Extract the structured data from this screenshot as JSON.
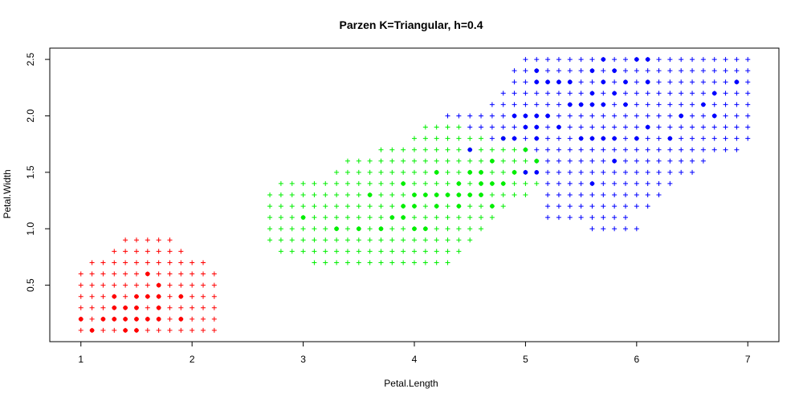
{
  "chart_data": {
    "type": "scatter",
    "title": "Parzen K=Triangular, h=0.4",
    "xlabel": "Petal.Length",
    "ylabel": "Petal.Width",
    "xlim": [
      0.72,
      7.28
    ],
    "ylim": [
      -0.0,
      2.6
    ],
    "xticks": [
      "1",
      "2",
      "3",
      "4",
      "5",
      "6",
      "7"
    ],
    "yticks": [
      "0.5",
      "1.0",
      "1.5",
      "2.0",
      "2.5"
    ],
    "grid": false,
    "legend": "none",
    "colors": {
      "setosa": "#ff0000",
      "versicolor": "#00ee00",
      "virginica": "#0000ff",
      "axis": "#000000"
    },
    "grid_step": 0.1,
    "series": [
      {
        "kind": "points",
        "color": "#ff0000",
        "points": [
          [
            1.0,
            0.2
          ],
          [
            1.1,
            0.1
          ],
          [
            1.2,
            0.2
          ],
          [
            1.3,
            0.2
          ],
          [
            1.3,
            0.3
          ],
          [
            1.3,
            0.4
          ],
          [
            1.4,
            0.1
          ],
          [
            1.4,
            0.2
          ],
          [
            1.4,
            0.3
          ],
          [
            1.5,
            0.1
          ],
          [
            1.5,
            0.2
          ],
          [
            1.5,
            0.3
          ],
          [
            1.5,
            0.4
          ],
          [
            1.6,
            0.2
          ],
          [
            1.6,
            0.4
          ],
          [
            1.6,
            0.6
          ],
          [
            1.7,
            0.2
          ],
          [
            1.7,
            0.3
          ],
          [
            1.7,
            0.4
          ],
          [
            1.7,
            0.5
          ],
          [
            1.9,
            0.2
          ],
          [
            1.9,
            0.4
          ]
        ]
      },
      {
        "kind": "points",
        "color": "#00ee00",
        "points": [
          [
            3.0,
            1.1
          ],
          [
            3.3,
            1.0
          ],
          [
            3.5,
            1.0
          ],
          [
            3.6,
            1.3
          ],
          [
            3.7,
            1.0
          ],
          [
            3.8,
            1.1
          ],
          [
            3.9,
            1.1
          ],
          [
            3.9,
            1.2
          ],
          [
            3.9,
            1.4
          ],
          [
            4.0,
            1.0
          ],
          [
            4.0,
            1.2
          ],
          [
            4.0,
            1.3
          ],
          [
            4.1,
            1.0
          ],
          [
            4.1,
            1.3
          ],
          [
            4.2,
            1.2
          ],
          [
            4.2,
            1.3
          ],
          [
            4.2,
            1.5
          ],
          [
            4.3,
            1.3
          ],
          [
            4.4,
            1.2
          ],
          [
            4.4,
            1.3
          ],
          [
            4.4,
            1.4
          ],
          [
            4.5,
            1.3
          ],
          [
            4.5,
            1.5
          ],
          [
            4.6,
            1.3
          ],
          [
            4.6,
            1.4
          ],
          [
            4.6,
            1.5
          ],
          [
            4.7,
            1.2
          ],
          [
            4.7,
            1.4
          ],
          [
            4.7,
            1.6
          ],
          [
            4.8,
            1.4
          ],
          [
            4.8,
            1.8
          ],
          [
            4.9,
            1.5
          ],
          [
            5.0,
            1.7
          ],
          [
            5.1,
            1.6
          ]
        ]
      },
      {
        "kind": "points",
        "color": "#0000ff",
        "points": [
          [
            4.5,
            1.7
          ],
          [
            4.8,
            1.8
          ],
          [
            4.9,
            1.8
          ],
          [
            4.9,
            2.0
          ],
          [
            5.0,
            1.5
          ],
          [
            5.0,
            1.9
          ],
          [
            5.0,
            2.0
          ],
          [
            5.1,
            1.5
          ],
          [
            5.1,
            1.8
          ],
          [
            5.1,
            1.9
          ],
          [
            5.1,
            2.0
          ],
          [
            5.1,
            2.3
          ],
          [
            5.1,
            2.4
          ],
          [
            5.2,
            2.0
          ],
          [
            5.2,
            2.3
          ],
          [
            5.3,
            1.9
          ],
          [
            5.3,
            2.3
          ],
          [
            5.4,
            2.1
          ],
          [
            5.4,
            2.3
          ],
          [
            5.5,
            1.8
          ],
          [
            5.5,
            2.1
          ],
          [
            5.6,
            1.4
          ],
          [
            5.6,
            1.8
          ],
          [
            5.6,
            2.1
          ],
          [
            5.6,
            2.2
          ],
          [
            5.6,
            2.4
          ],
          [
            5.7,
            1.8
          ],
          [
            5.7,
            2.1
          ],
          [
            5.7,
            2.3
          ],
          [
            5.7,
            2.5
          ],
          [
            5.8,
            1.6
          ],
          [
            5.8,
            1.8
          ],
          [
            5.8,
            2.2
          ],
          [
            5.8,
            2.4
          ],
          [
            5.9,
            2.1
          ],
          [
            5.9,
            2.3
          ],
          [
            6.0,
            1.8
          ],
          [
            6.0,
            2.5
          ],
          [
            6.1,
            1.9
          ],
          [
            6.1,
            2.3
          ],
          [
            6.1,
            2.5
          ],
          [
            6.3,
            1.8
          ],
          [
            6.4,
            2.0
          ],
          [
            6.6,
            2.1
          ],
          [
            6.7,
            2.0
          ],
          [
            6.7,
            2.2
          ],
          [
            6.9,
            2.3
          ]
        ]
      },
      {
        "kind": "region",
        "color": "#ff0000",
        "rows": [
          {
            "y": 0.1,
            "from": 1.0,
            "to": 2.2
          },
          {
            "y": 0.2,
            "from": 1.0,
            "to": 2.2
          },
          {
            "y": 0.3,
            "from": 1.0,
            "to": 2.2
          },
          {
            "y": 0.4,
            "from": 1.0,
            "to": 2.2
          },
          {
            "y": 0.5,
            "from": 1.0,
            "to": 2.2
          },
          {
            "y": 0.6,
            "from": 1.0,
            "to": 2.2
          },
          {
            "y": 0.7,
            "from": 1.1,
            "to": 2.1
          },
          {
            "y": 0.8,
            "from": 1.3,
            "to": 1.9
          },
          {
            "y": 0.9,
            "from": 1.4,
            "to": 1.8
          }
        ]
      },
      {
        "kind": "region",
        "color": "#00ee00",
        "rows": [
          {
            "y": 0.7,
            "from": 3.1,
            "to": 4.3
          },
          {
            "y": 0.8,
            "from": 2.8,
            "to": 4.4
          },
          {
            "y": 0.9,
            "from": 2.7,
            "to": 4.5
          },
          {
            "y": 1.0,
            "from": 2.7,
            "to": 4.6
          },
          {
            "y": 1.1,
            "from": 2.7,
            "to": 4.7
          },
          {
            "y": 1.2,
            "from": 2.7,
            "to": 4.8
          },
          {
            "y": 1.3,
            "from": 2.7,
            "to": 5.0
          },
          {
            "y": 1.4,
            "from": 2.8,
            "to": 5.1
          },
          {
            "y": 1.5,
            "from": 3.3,
            "to": 5.0
          },
          {
            "y": 1.6,
            "from": 3.4,
            "to": 5.0
          },
          {
            "y": 1.7,
            "from": 3.7,
            "to": 4.9
          },
          {
            "y": 1.8,
            "from": 4.0,
            "to": 4.6
          },
          {
            "y": 1.9,
            "from": 4.1,
            "to": 4.4
          }
        ]
      },
      {
        "kind": "region",
        "color": "#0000ff",
        "rows": [
          {
            "y": 1.0,
            "from": 5.6,
            "to": 6.0
          },
          {
            "y": 1.1,
            "from": 5.2,
            "to": 5.9
          },
          {
            "y": 1.2,
            "from": 5.2,
            "to": 6.1
          },
          {
            "y": 1.3,
            "from": 5.2,
            "to": 6.2
          },
          {
            "y": 1.4,
            "from": 5.2,
            "to": 6.3
          },
          {
            "y": 1.5,
            "from": 5.2,
            "to": 6.5
          },
          {
            "y": 1.6,
            "from": 5.1,
            "to": 6.6
          },
          {
            "y": 1.7,
            "from": 5.0,
            "to": 6.9
          },
          {
            "y": 1.8,
            "from": 4.7,
            "to": 7.0
          },
          {
            "y": 1.9,
            "from": 4.5,
            "to": 7.0
          },
          {
            "y": 2.0,
            "from": 4.3,
            "to": 7.0
          },
          {
            "y": 2.1,
            "from": 4.7,
            "to": 7.0
          },
          {
            "y": 2.2,
            "from": 4.8,
            "to": 7.0
          },
          {
            "y": 2.3,
            "from": 4.9,
            "to": 7.0
          },
          {
            "y": 2.4,
            "from": 4.9,
            "to": 7.0
          },
          {
            "y": 2.5,
            "from": 5.0,
            "to": 7.0
          }
        ]
      }
    ]
  }
}
